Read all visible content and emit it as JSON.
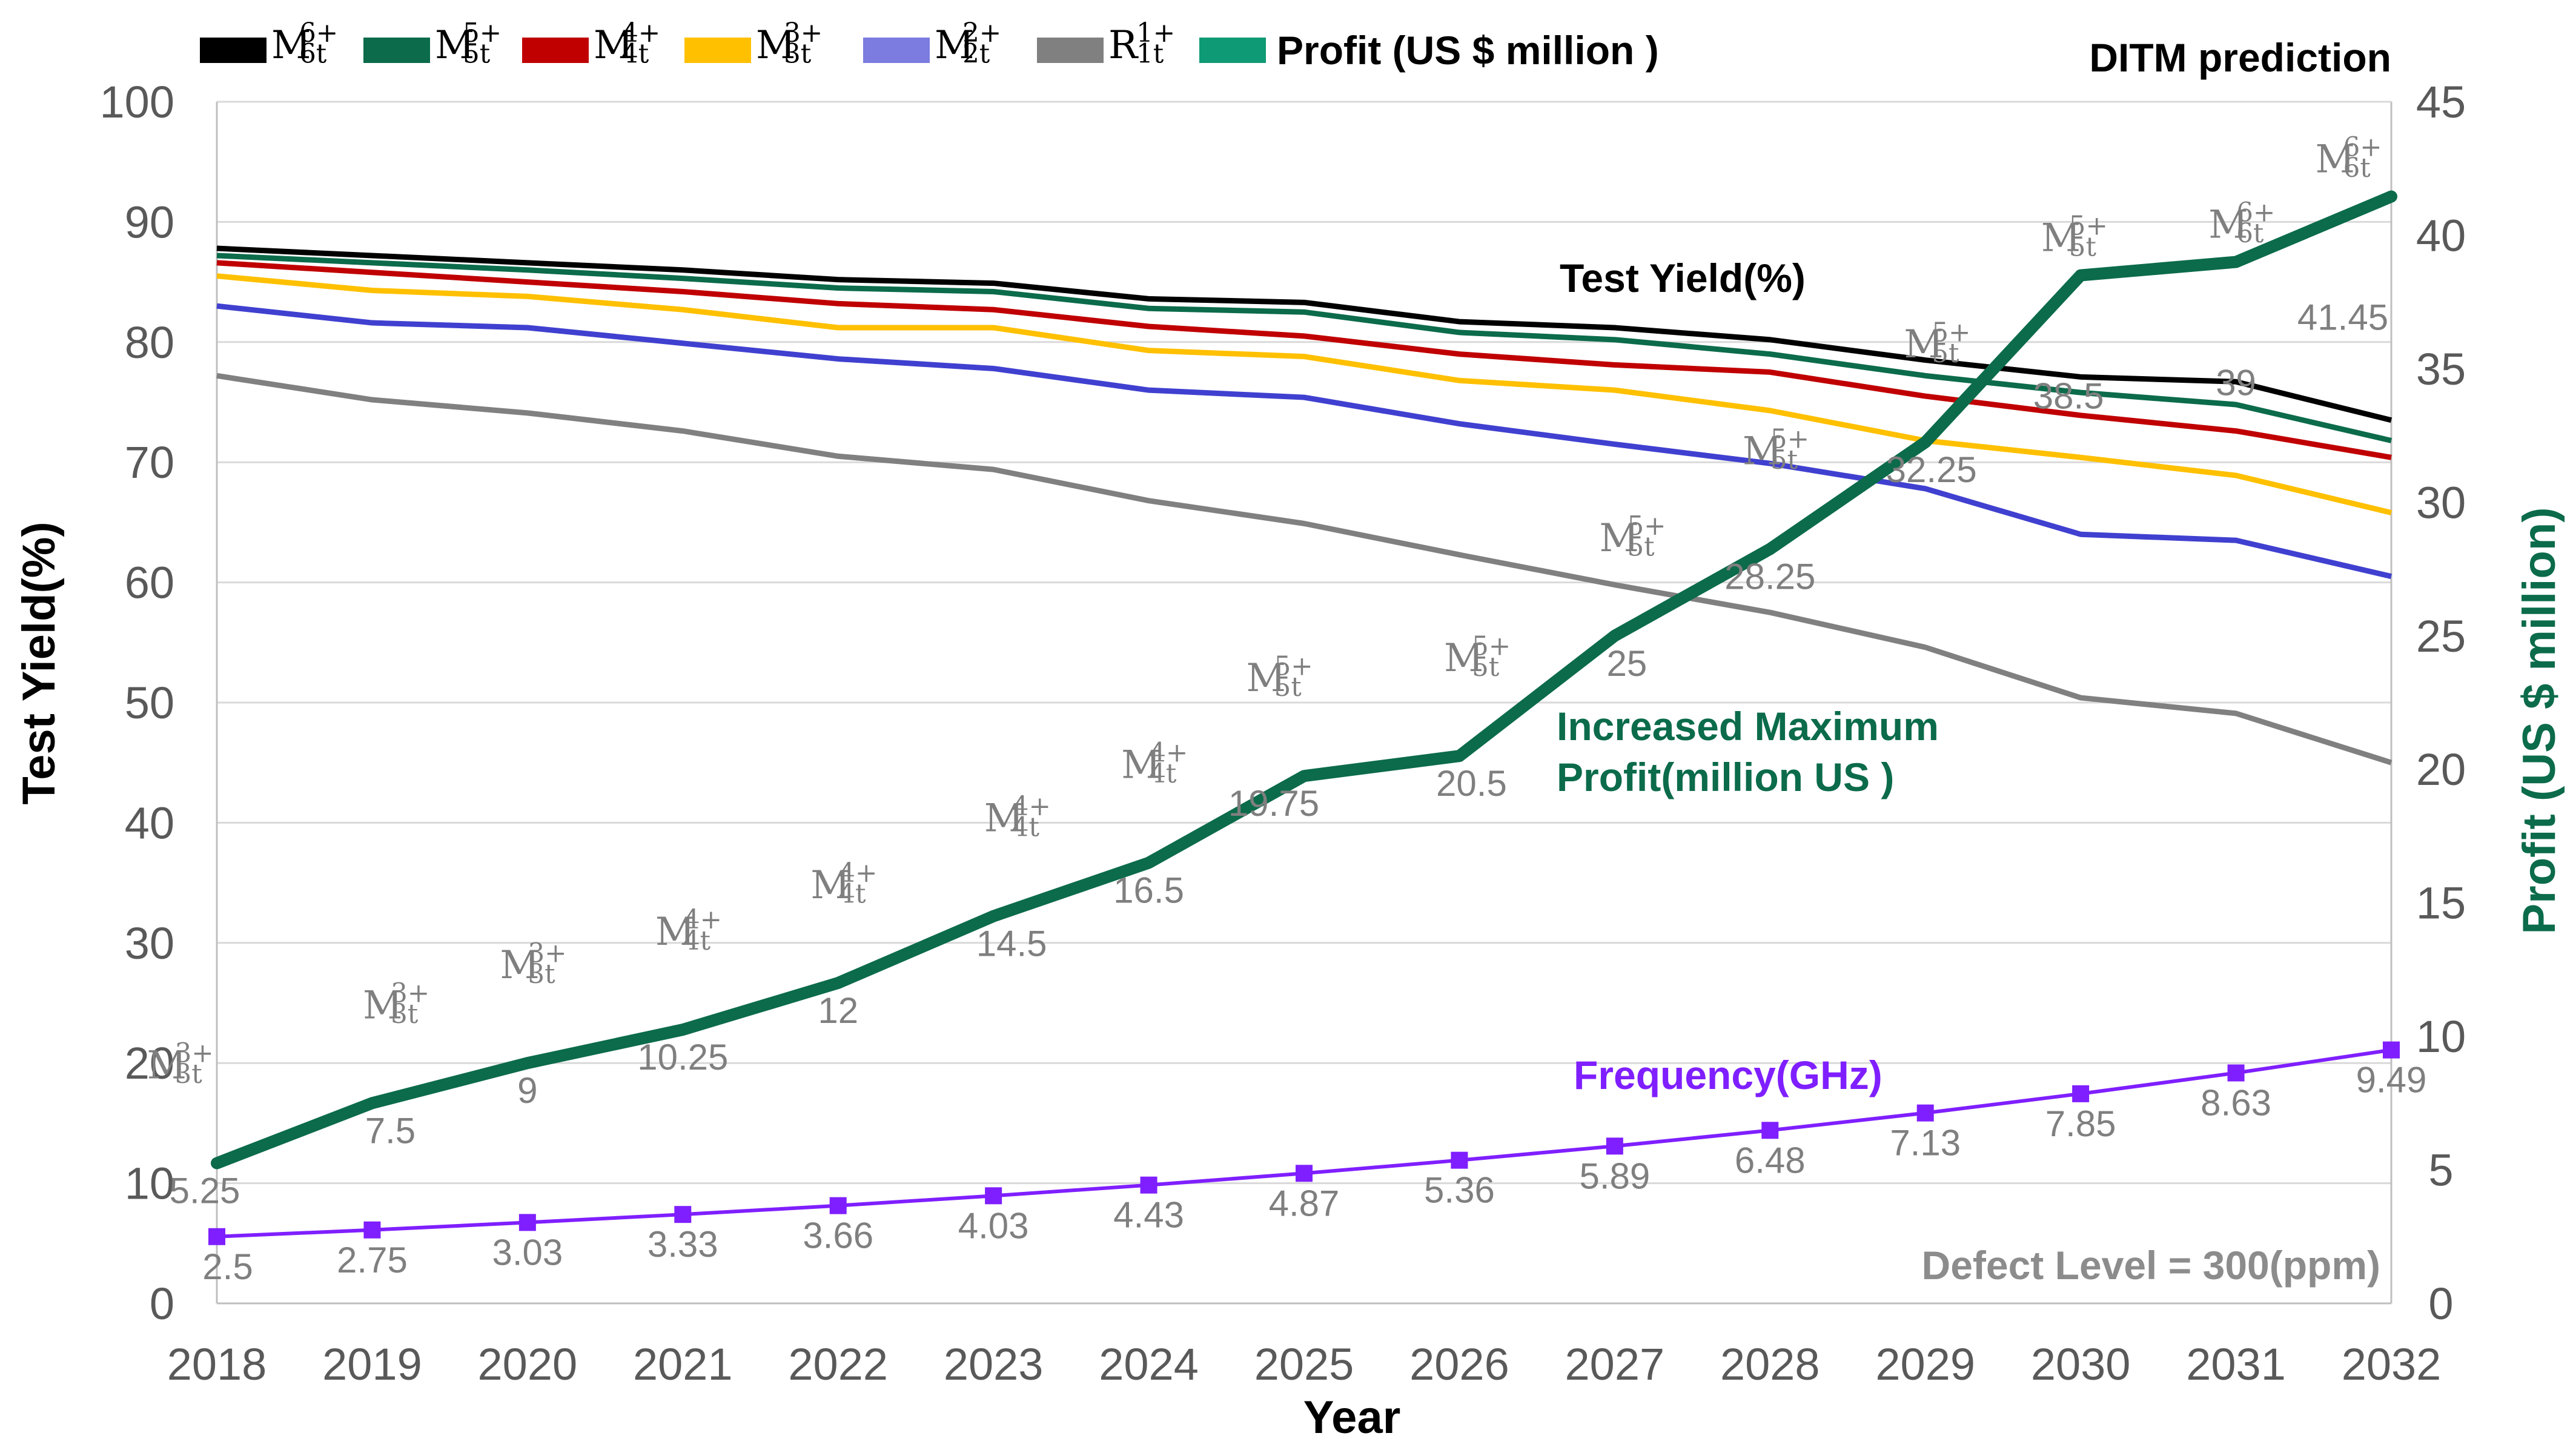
{
  "chart_data": {
    "type": "line",
    "title": "DITM prediction",
    "xlabel": "Year",
    "ylabel_left": "Test Yield(%)",
    "ylabel_right": "Profit (US $ million)",
    "ylim_left": [
      0,
      100
    ],
    "ylim_right": [
      0,
      45
    ],
    "yticks_left": [
      "0",
      "10",
      "20",
      "30",
      "40",
      "50",
      "60",
      "70",
      "80",
      "90",
      "100"
    ],
    "yticks_right": [
      "0",
      "5",
      "10",
      "15",
      "20",
      "25",
      "30",
      "35",
      "40",
      "45"
    ],
    "categories": [
      "2018",
      "2019",
      "2020",
      "2021",
      "2022",
      "2023",
      "2024",
      "2025",
      "2026",
      "2027",
      "2028",
      "2029",
      "2030",
      "2031",
      "2032"
    ],
    "grid": "horizontal",
    "legend_position": "top-left",
    "yield_series": [
      {
        "name": "M6t 6+",
        "base": "M",
        "sup": "6+",
        "sub": "6t",
        "color": "#000000",
        "values": [
          87.8,
          87.2,
          86.6,
          86.0,
          85.2,
          84.9,
          83.6,
          83.3,
          81.7,
          81.2,
          80.2,
          78.5,
          77.1,
          76.7,
          73.5
        ]
      },
      {
        "name": "M5t 5+",
        "base": "M",
        "sup": "5+",
        "sub": "5t",
        "color": "#0b6b4a",
        "values": [
          87.2,
          86.6,
          86.0,
          85.3,
          84.5,
          84.2,
          82.8,
          82.5,
          80.8,
          80.2,
          79.0,
          77.2,
          75.8,
          74.8,
          71.8
        ]
      },
      {
        "name": "M4t 4+",
        "base": "M",
        "sup": "4+",
        "sub": "4t",
        "color": "#c00000",
        "values": [
          86.6,
          85.8,
          85.0,
          84.2,
          83.2,
          82.7,
          81.3,
          80.5,
          79.0,
          78.1,
          77.5,
          75.5,
          73.9,
          72.6,
          70.4
        ]
      },
      {
        "name": "M3t 3+",
        "base": "M",
        "sup": "3+",
        "sub": "3t",
        "color": "#ffc000",
        "values": [
          85.5,
          84.3,
          83.8,
          82.7,
          81.2,
          81.2,
          79.3,
          78.8,
          76.8,
          76.0,
          74.3,
          71.8,
          70.4,
          68.9,
          65.8
        ]
      },
      {
        "name": "M2t 2+",
        "base": "M",
        "sup": "2+",
        "sub": "2t",
        "color": "#4040d0",
        "legend_color": "#7b7be0",
        "values": [
          83.0,
          81.6,
          81.2,
          79.9,
          78.6,
          77.8,
          76.0,
          75.4,
          73.2,
          71.5,
          69.9,
          67.8,
          64.0,
          63.5,
          60.5
        ]
      },
      {
        "name": "R1t 1+",
        "base": "R",
        "sup": "1+",
        "sub": "1t",
        "color": "#808080",
        "values": [
          77.2,
          75.2,
          74.1,
          72.6,
          70.5,
          69.4,
          66.8,
          64.9,
          62.3,
          59.8,
          57.5,
          54.6,
          50.4,
          49.1,
          45.0
        ]
      }
    ],
    "profit_series": {
      "name": "Profit (US $ million )",
      "color": "#0b6b4a",
      "legend_color": "#0e9a74",
      "values": [
        5.25,
        7.5,
        9,
        10.25,
        12,
        14.5,
        16.5,
        19.75,
        20.5,
        25,
        28.25,
        32.25,
        38.5,
        39,
        41.45
      ],
      "labels": [
        "5.25",
        "7.5",
        "9",
        "10.25",
        "12",
        "14.5",
        "16.5",
        "19.75",
        "20.5",
        "25",
        "28.25",
        "32.25",
        "38.5",
        "39",
        "41.45"
      ],
      "model_labels": [
        {
          "sup": "3+",
          "sub": "3t"
        },
        {
          "sup": "3+",
          "sub": "3t"
        },
        {
          "sup": "3+",
          "sub": "3t"
        },
        {
          "sup": "4+",
          "sub": "4t"
        },
        {
          "sup": "4+",
          "sub": "4t"
        },
        {
          "sup": "4+",
          "sub": "4t"
        },
        {
          "sup": "4+",
          "sub": "4t"
        },
        {
          "sup": "5+",
          "sub": "5t"
        },
        {
          "sup": "5+",
          "sub": "5t"
        },
        {
          "sup": "5+",
          "sub": "5t"
        },
        {
          "sup": "5+",
          "sub": "5t"
        },
        {
          "sup": "5+",
          "sub": "5t"
        },
        {
          "sup": "5+",
          "sub": "5t"
        },
        {
          "sup": "6+",
          "sub": "6t"
        },
        {
          "sup": "6+",
          "sub": "6t"
        }
      ]
    },
    "frequency_series": {
      "name": "Frequency(GHz)",
      "color": "#7f1fff",
      "axis": "right",
      "values": [
        2.5,
        2.75,
        3.03,
        3.33,
        3.66,
        4.03,
        4.43,
        4.87,
        5.36,
        5.89,
        6.48,
        7.13,
        7.85,
        8.63,
        9.49
      ],
      "labels": [
        "2.5",
        "2.75",
        "3.03",
        "3.33",
        "3.66",
        "4.03",
        "4.43",
        "4.87",
        "5.36",
        "5.89",
        "6.48",
        "7.13",
        "7.85",
        "8.63",
        "9.49"
      ]
    },
    "annotations": {
      "test_yield": "Test Yield(%)",
      "profit_line1": "Increased Maximum",
      "profit_line2": "Profit(million US )",
      "frequency": "Frequency(GHz)",
      "defect": "Defect Level = 300(ppm)"
    }
  }
}
